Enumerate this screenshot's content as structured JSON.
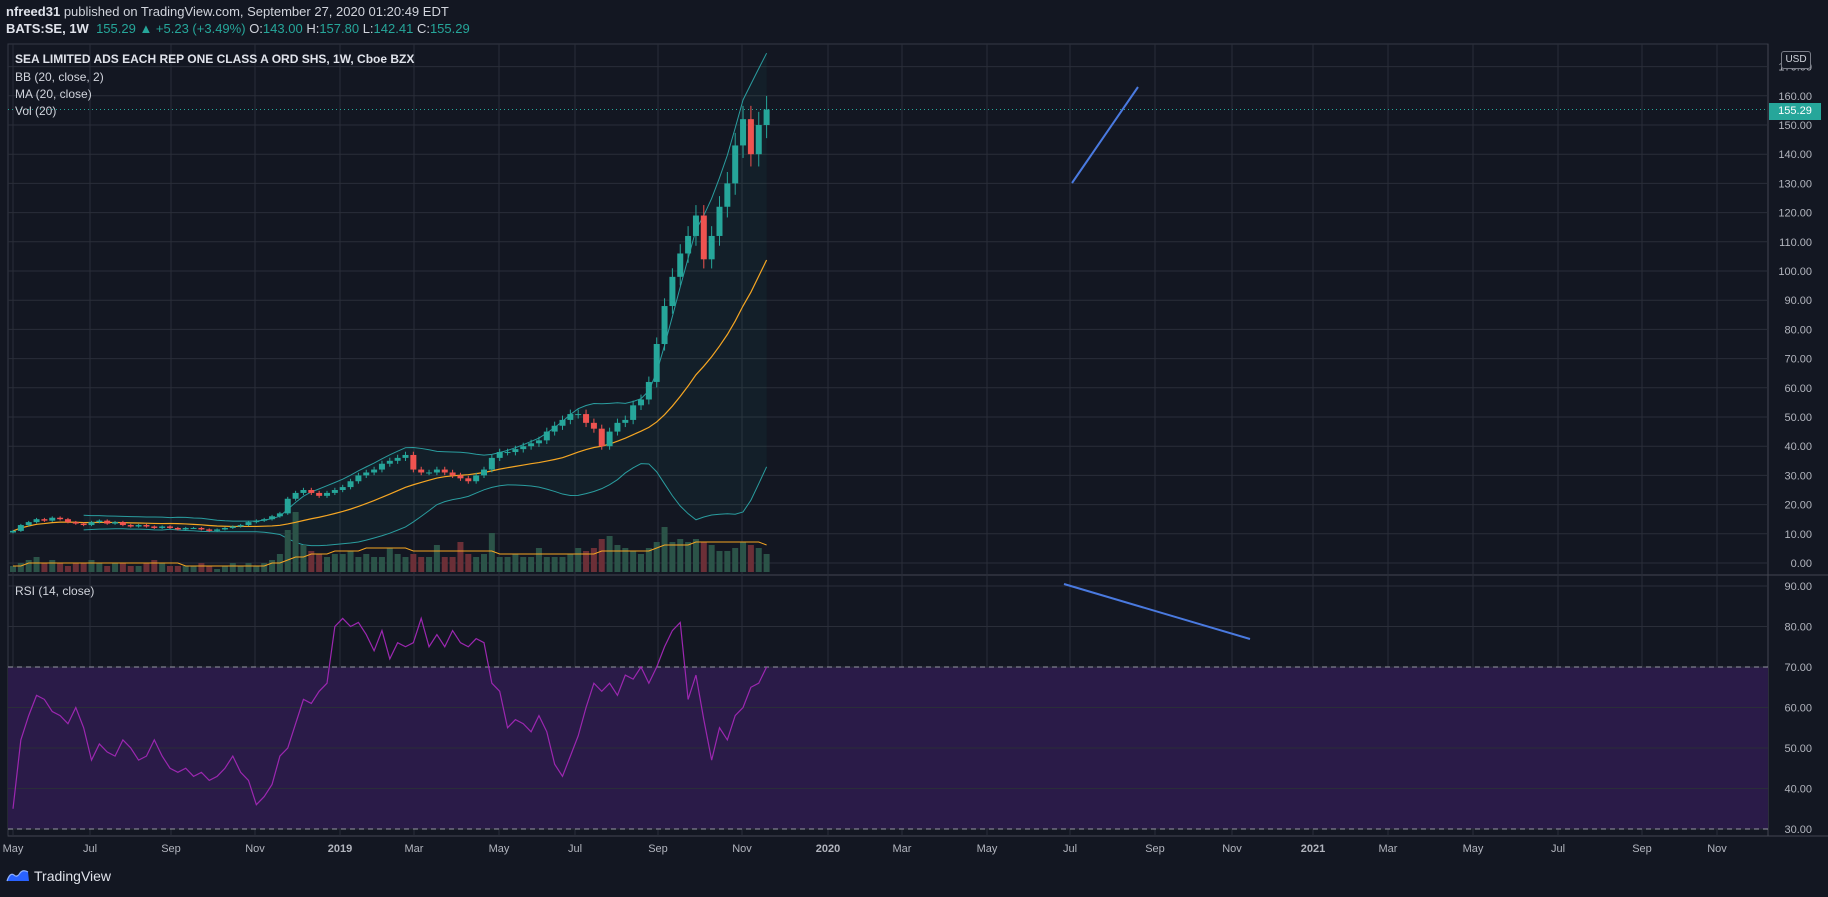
{
  "header": {
    "author": "nfreed31",
    "published": " published on TradingView.com, September 27, 2020 01:20:49 EDT",
    "symbol": "BATS:SE, 1W",
    "last": "155.29",
    "change": "▲ +5.23 (+3.49%)",
    "o_label": "O:",
    "o": "143.00",
    "h_label": "H:",
    "h": "157.80",
    "l_label": "L:",
    "l": "142.41",
    "c_label": "C:",
    "c": "155.29"
  },
  "legend": {
    "title": "SEA LIMITED ADS EACH REP ONE CLASS A ORD SHS, 1W, Cboe BZX",
    "bb": "BB (20, close, 2)",
    "ma": "MA (20, close)",
    "vol": "Vol (20)",
    "rsi": "RSI (14, close)"
  },
  "currency": "USD",
  "last_price_tag": "155.29",
  "brand": "TradingView",
  "colors": {
    "background": "#131722",
    "grid": "#2a2e39",
    "up": "#26a69a",
    "down": "#ef5350",
    "bb": "#2a9d9f",
    "ma": "#f5a623",
    "rsi": "#9c27b0",
    "rsi_band": "#2a1b48",
    "trendline": "#4a7ae0",
    "vol_up": "#2b5348",
    "vol_down": "#6b2f37"
  },
  "chart_data": [
    {
      "type": "candlestick",
      "title": "SEA LIMITED ADS EACH REP ONE CLASS A ORD SHS, 1W, Cboe BZX",
      "xlabels": [
        "May",
        "Jul",
        "Sep",
        "Nov",
        "2019",
        "Mar",
        "May",
        "Jul",
        "Sep",
        "Nov",
        "2020",
        "Mar",
        "May",
        "Jul",
        "Sep",
        "Nov",
        "2021",
        "Mar",
        "May",
        "Jul",
        "Sep",
        "Nov"
      ],
      "ylim": [
        -3,
        172
      ],
      "yticks": [
        0,
        10,
        20,
        30,
        40,
        50,
        60,
        70,
        80,
        90,
        100,
        110,
        120,
        130,
        140,
        150,
        160,
        170
      ],
      "ytick_labels": [
        "0.00",
        "10.00",
        "20.00",
        "30.00",
        "40.00",
        "50.00",
        "60.00",
        "70.00",
        "80.00",
        "90.00",
        "100.00",
        "110.00",
        "120.00",
        "130.00",
        "140.00",
        "150.00",
        "160.00",
        "170.00"
      ],
      "last_price": 155.29,
      "close": [
        11,
        13,
        14,
        15,
        14.5,
        15.5,
        15,
        14,
        13.5,
        13,
        14,
        14.5,
        13.5,
        14,
        13,
        12.5,
        13,
        12.5,
        12,
        12.5,
        12,
        11.5,
        12,
        12,
        11.5,
        11,
        11.5,
        12,
        12.5,
        13,
        14,
        14.5,
        15,
        16,
        17,
        22,
        24,
        25,
        24,
        23,
        24,
        25,
        26,
        28,
        30,
        31,
        32,
        34,
        35,
        36,
        37,
        32,
        31,
        31,
        32,
        31,
        30,
        29,
        28,
        30,
        32,
        36,
        38,
        38,
        39,
        40,
        41,
        42,
        45,
        47,
        49,
        51,
        51,
        48,
        46,
        40,
        45,
        48,
        49,
        54,
        56,
        62,
        75,
        88,
        98,
        106,
        112,
        119,
        104,
        112,
        122,
        130,
        143,
        152,
        140,
        150,
        155.29
      ],
      "volume": [
        2,
        3,
        4,
        5,
        3,
        4,
        3,
        2,
        3,
        3,
        4,
        3,
        2,
        3,
        3,
        2,
        2,
        3,
        4,
        3,
        2,
        2,
        2,
        2,
        3,
        2,
        1,
        2,
        3,
        2,
        3,
        2,
        3,
        4,
        6,
        14,
        20,
        9,
        7,
        6,
        5,
        6,
        6,
        7,
        5,
        6,
        5,
        5,
        8,
        6,
        5,
        6,
        5,
        5,
        9,
        5,
        5,
        10,
        6,
        5,
        6,
        13,
        5,
        5,
        6,
        5,
        5,
        8,
        5,
        5,
        5,
        6,
        8,
        7,
        8,
        11,
        12,
        9,
        8,
        7,
        6,
        8,
        10,
        15,
        10,
        11,
        10,
        11,
        10,
        9,
        7,
        7,
        8,
        10,
        9,
        8,
        6
      ],
      "volume_ma": [
        2,
        2,
        3,
        3,
        3,
        3,
        3,
        3,
        3,
        3,
        3,
        3,
        3,
        3,
        3,
        3,
        3,
        3,
        3,
        3,
        3,
        3,
        2,
        2,
        2,
        2,
        2,
        2,
        2,
        2,
        2,
        2,
        2,
        3,
        3,
        4,
        5,
        5,
        6,
        6,
        6,
        7,
        7,
        7,
        7,
        8,
        8,
        8,
        8,
        8,
        8,
        7,
        7,
        7,
        7,
        7,
        7,
        7,
        7,
        7,
        7,
        7,
        6,
        6,
        6,
        6,
        6,
        6,
        6,
        6,
        6,
        6,
        6,
        6,
        6,
        7,
        7,
        7,
        7,
        7,
        7,
        7,
        8,
        9,
        9,
        9,
        9,
        10,
        10,
        10,
        10,
        10,
        10,
        10,
        10,
        10,
        9
      ]
    },
    {
      "type": "line",
      "title": "RSI (14, close)",
      "ylim": [
        28,
        91
      ],
      "yticks": [
        30,
        40,
        50,
        60,
        70,
        80,
        90
      ],
      "ytick_labels": [
        "30.00",
        "40.00",
        "50.00",
        "60.00",
        "70.00",
        "80.00",
        "90.00"
      ],
      "overbought": 70,
      "oversold": 30,
      "values": [
        35,
        52,
        58,
        63,
        62,
        59,
        58,
        56,
        60,
        55,
        47,
        51,
        49,
        48,
        52,
        50,
        47,
        48,
        52,
        48,
        45,
        44,
        45,
        43,
        44,
        42,
        43,
        45,
        48,
        44,
        42,
        36,
        38,
        41,
        48,
        50,
        56,
        62,
        61,
        64,
        66,
        80,
        82,
        80,
        81,
        78,
        74,
        79,
        72,
        76,
        75,
        76,
        82,
        75,
        78,
        75,
        79,
        76,
        75,
        77,
        76,
        66,
        64,
        55,
        57,
        56,
        54,
        58,
        54,
        46,
        43,
        48,
        53,
        60,
        66,
        64,
        66,
        63,
        68,
        67,
        70,
        66,
        70,
        75,
        79,
        81,
        62,
        68,
        57,
        47,
        55,
        52,
        58,
        60,
        65,
        66,
        70
      ]
    }
  ]
}
